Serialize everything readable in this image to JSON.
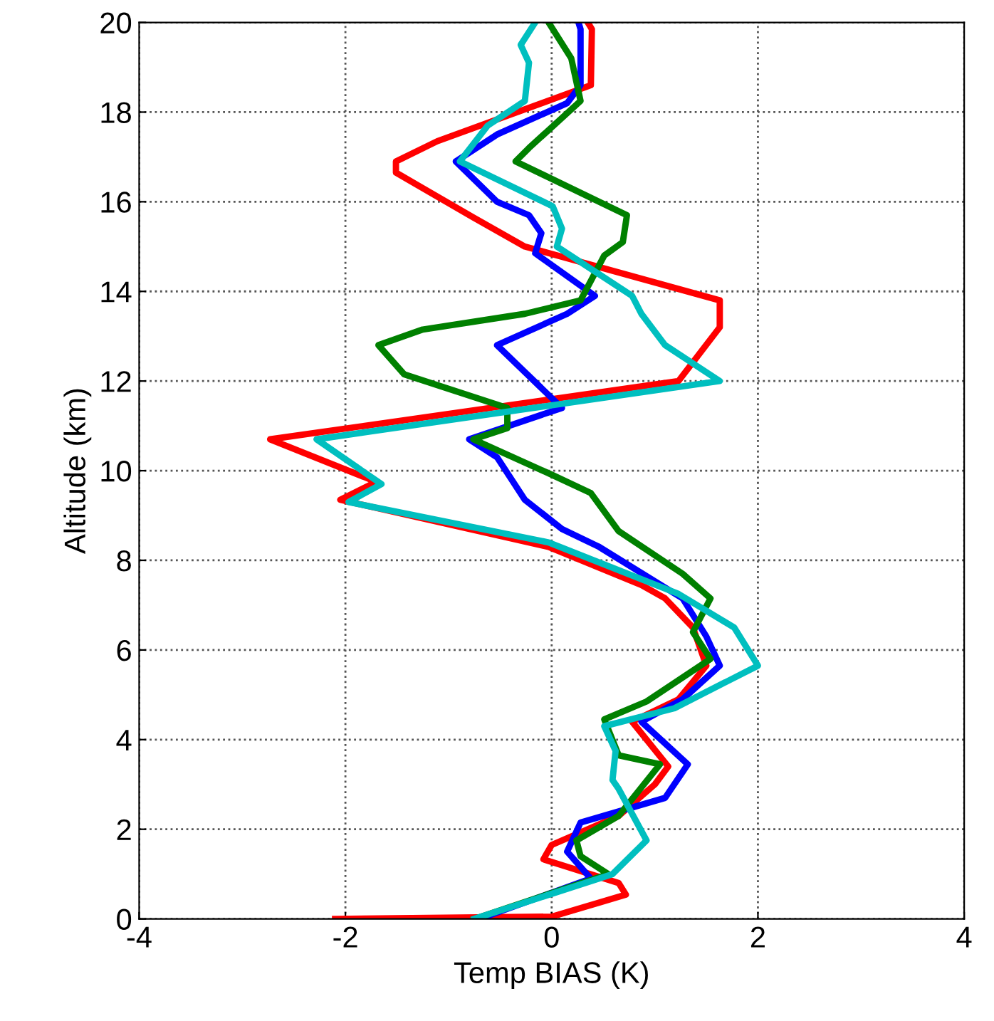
{
  "chart_data": {
    "type": "line",
    "xlabel": "Temp BIAS (K)",
    "ylabel": "Altitude (km)",
    "xlim": [
      -4,
      4
    ],
    "xticks": [
      -4,
      -2,
      0,
      2,
      4
    ],
    "ylim": [
      0,
      20
    ],
    "yticks": [
      0,
      2,
      4,
      6,
      8,
      10,
      12,
      14,
      16,
      18,
      20
    ],
    "grid": true,
    "marker": "none",
    "line_style": "solid",
    "series": [
      {
        "color": "#ff0000",
        "x": [
          -2.1,
          0.0,
          0.72,
          0.65,
          -0.08,
          0.0,
          0.65,
          1.0,
          1.13,
          0.78,
          1.23,
          1.5,
          1.37,
          1.1,
          0.87,
          -0.03,
          -2.05,
          -1.7,
          -2.73,
          1.23,
          1.63,
          1.63,
          -0.26,
          -0.76,
          -1.51,
          -1.51,
          -1.11,
          0.38,
          0.39,
          0.35
        ],
        "values": [
          0,
          0.05,
          0.54,
          0.8,
          1.33,
          1.65,
          2.3,
          3.0,
          3.4,
          4.4,
          4.9,
          5.65,
          6.5,
          7.15,
          7.45,
          8.3,
          9.35,
          9.75,
          10.7,
          12.0,
          13.2,
          13.8,
          15.0,
          15.65,
          16.65,
          16.9,
          17.35,
          18.6,
          19.85,
          20
        ]
      },
      {
        "color": "#0000ff",
        "x": [
          -0.7,
          0.38,
          0.15,
          0.28,
          1.1,
          1.32,
          0.87,
          1.27,
          1.63,
          1.5,
          1.27,
          0.46,
          0.1,
          -0.26,
          -0.53,
          -0.8,
          0.1,
          0.01,
          -0.53,
          0.15,
          0.42,
          -0.16,
          -0.1,
          -0.22,
          -0.53,
          -0.93,
          -0.53,
          0.15,
          0.28,
          0.28,
          0.26
        ],
        "values": [
          0,
          0.9,
          1.5,
          2.15,
          2.7,
          3.45,
          4.4,
          4.9,
          5.65,
          6.3,
          7.15,
          8.3,
          8.7,
          9.35,
          10.3,
          10.7,
          11.4,
          11.6,
          12.8,
          13.5,
          13.9,
          14.85,
          15.3,
          15.7,
          16.0,
          16.9,
          17.5,
          18.2,
          18.6,
          19.85,
          20
        ]
      },
      {
        "color": "#008000",
        "x": [
          -0.75,
          0.55,
          0.28,
          0.24,
          0.65,
          1.05,
          0.65,
          0.51,
          0.92,
          1.54,
          1.37,
          1.54,
          1.27,
          0.65,
          0.38,
          0.01,
          -0.76,
          -0.43,
          -0.43,
          -1.43,
          -1.68,
          -1.25,
          -0.26,
          0.28,
          0.51,
          0.69,
          0.73,
          -0.35,
          -0.22,
          0.28,
          0.19,
          -0.03
        ],
        "values": [
          0,
          1.0,
          1.4,
          1.75,
          2.3,
          3.45,
          3.65,
          4.45,
          4.85,
          5.8,
          6.4,
          7.15,
          7.7,
          8.65,
          9.5,
          9.9,
          10.7,
          10.95,
          11.4,
          12.15,
          12.8,
          13.15,
          13.5,
          13.8,
          14.8,
          15.1,
          15.7,
          16.9,
          17.2,
          18.25,
          19.2,
          20
        ]
      },
      {
        "color": "#00bfbf",
        "x": [
          -0.75,
          0.59,
          0.92,
          0.65,
          0.59,
          0.62,
          0.51,
          1.19,
          2.0,
          1.77,
          1.23,
          -0.03,
          -1.97,
          -1.65,
          -2.28,
          1.63,
          1.1,
          0.87,
          0.78,
          0.05,
          0.1,
          0.01,
          -0.89,
          -0.62,
          -0.26,
          -0.22,
          -0.3,
          -0.16
        ],
        "values": [
          0,
          1.0,
          1.75,
          2.9,
          3.1,
          3.75,
          4.3,
          4.7,
          5.65,
          6.5,
          7.25,
          8.4,
          9.3,
          9.7,
          10.7,
          12.0,
          12.8,
          13.5,
          13.9,
          15.0,
          15.4,
          15.9,
          16.9,
          17.7,
          18.25,
          19.1,
          19.5,
          20
        ]
      }
    ]
  }
}
